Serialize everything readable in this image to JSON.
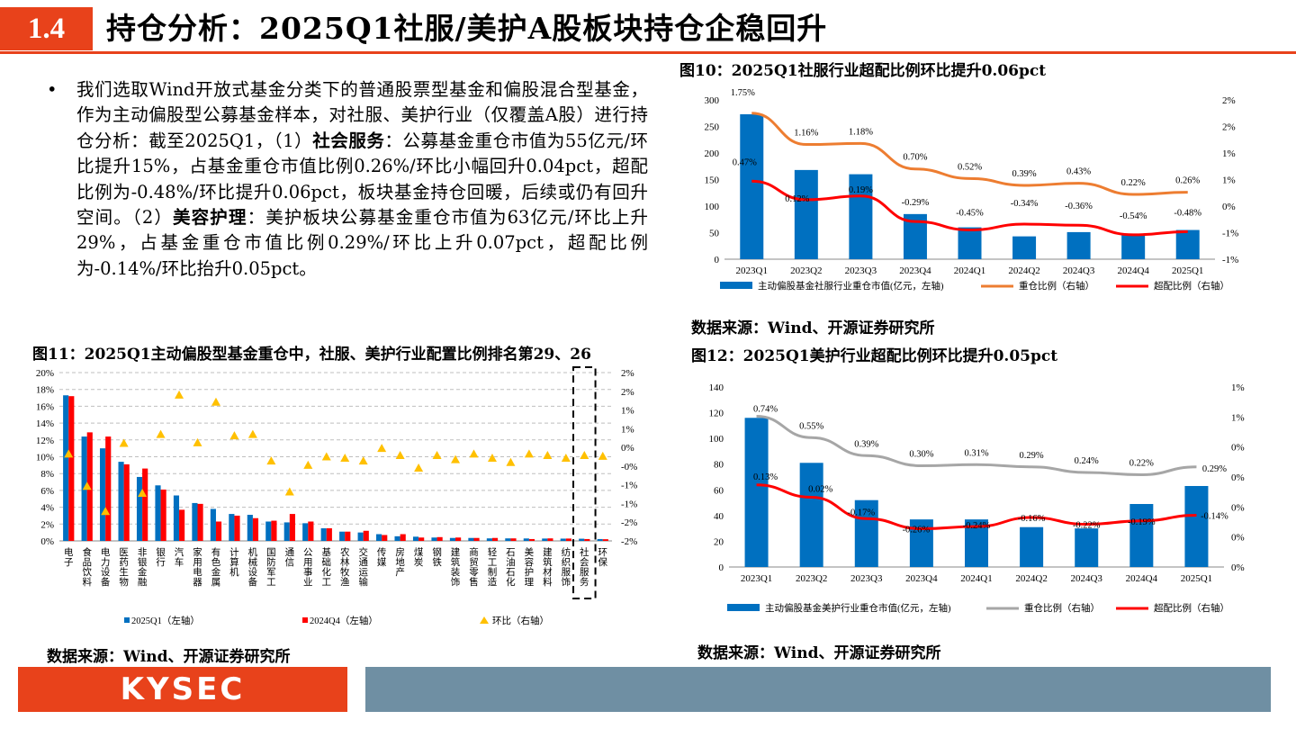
{
  "header": {
    "section_number": "1.4",
    "title": "持仓分析：2025Q1社服/美护A股板块持仓企稳回升"
  },
  "bullet": {
    "dot": "•",
    "p1": "我们选取Wind开放式基金分类下的普通股票型基金和偏股混合型基金，作为主动偏股型公募基金样本，对社服、美护行业（仅覆盖A股）进行持仓分析：截至2025Q1，（1）",
    "b1": "社会服务",
    "p2": "：公募基金重仓市值为55亿元/环比提升15%，占基金重仓市值比例0.26%/环比小幅回升0.04pct，超配比例为-0.48%/环比提升0.06pct，板块基金持仓回暖，后续或仍有回升空间。（2）",
    "b2": "美容护理",
    "p3": "：美护板块公募基金重仓市值为63亿元/环比上升29%，占基金重仓市值比例0.29%/环比上升0.07pct，超配比例为-0.14%/环比抬升0.05pct。"
  },
  "fig10": {
    "caption": "图10：2025Q1社服行业超配比例环比提升0.06pct",
    "source": "数据来源：Wind、开源证券研究所"
  },
  "fig11": {
    "caption": "图11：2025Q1主动偏股型基金重仓中，社服、美护行业配置比例排名第29、26",
    "source": "数据来源：Wind、开源证券研究所"
  },
  "fig12": {
    "caption": "图12：2025Q1美护行业超配比例环比提升0.05pct",
    "source": "数据来源：Wind、开源证券研究所"
  },
  "footer": {
    "logo": "KYSEC"
  },
  "colors": {
    "accent": "#e8421b",
    "bar_blue": "#0070c0",
    "line_orange": "#ed7d31",
    "line_red": "#ff0000",
    "line_gray": "#a6a6a6",
    "triangle_yellow": "#ffc000",
    "footer_gray": "#6f8fa3"
  },
  "chart_data": [
    {
      "id": "fig10",
      "type": "bar",
      "categories": [
        "2023Q1",
        "2023Q2",
        "2023Q3",
        "2023Q4",
        "2024Q1",
        "2024Q2",
        "2024Q3",
        "2024Q4",
        "2025Q1"
      ],
      "series": [
        {
          "name": "主动偏股基金社服行业重仓市值(亿元，左轴)",
          "type": "bar",
          "axis": "left",
          "values": [
            273,
            168,
            160,
            85,
            60,
            43,
            51,
            48,
            55
          ]
        },
        {
          "name": "重仓比例（右轴）",
          "type": "line",
          "axis": "right",
          "values": [
            1.75,
            1.16,
            1.18,
            0.7,
            0.52,
            0.39,
            0.43,
            0.22,
            0.26
          ],
          "labels": [
            "1.75%",
            "1.16%",
            "1.18%",
            "0.70%",
            "0.52%",
            "0.39%",
            "0.43%",
            "0.22%",
            "0.26%"
          ]
        },
        {
          "name": "超配比例（右轴）",
          "type": "line",
          "axis": "right",
          "values": [
            0.47,
            0.12,
            0.19,
            -0.29,
            -0.45,
            -0.34,
            -0.36,
            -0.54,
            -0.48
          ],
          "labels": [
            "0.47%",
            "0.12%",
            "0.19%",
            "-0.29%",
            "-0.45%",
            "-0.34%",
            "-0.36%",
            "-0.54%",
            "-0.48%"
          ]
        }
      ],
      "y_left": {
        "min": 0,
        "max": 300,
        "ticks": [
          "0",
          "50",
          "100",
          "150",
          "200",
          "250",
          "300"
        ]
      },
      "y_right": {
        "min": -1,
        "max": 2,
        "ticks": [
          "-1%",
          "-1%",
          "0%",
          "1%",
          "1%",
          "2%",
          "2%"
        ]
      }
    },
    {
      "id": "fig11",
      "type": "bar",
      "categories": [
        "电子",
        "食品饮料",
        "电力设备",
        "医药生物",
        "非银金融",
        "银行",
        "汽车",
        "家用电器",
        "有色金属",
        "计算机",
        "机械设备",
        "国防军工",
        "通信",
        "公用事业",
        "基础化工",
        "农林牧渔",
        "交通运输",
        "传媒",
        "房地产",
        "煤炭",
        "钢铁",
        "建筑装饰",
        "商贸零售",
        "轻工制造",
        "石油石化",
        "美容护理",
        "建筑材料",
        "纺织服饰",
        "社会服务",
        "环保"
      ],
      "series": [
        {
          "name": "2025Q1（左轴）",
          "type": "bar",
          "axis": "left",
          "values": [
            17.3,
            12.4,
            11.0,
            9.4,
            7.6,
            6.6,
            5.4,
            4.5,
            3.8,
            3.2,
            3.1,
            2.3,
            2.2,
            2.1,
            1.5,
            1.1,
            1.0,
            0.8,
            0.55,
            0.5,
            0.4,
            0.35,
            0.35,
            0.3,
            0.3,
            0.29,
            0.28,
            0.27,
            0.26,
            0.22
          ]
        },
        {
          "name": "2024Q4（左轴）",
          "type": "bar",
          "axis": "left",
          "values": [
            17.2,
            12.9,
            12.4,
            9.1,
            8.6,
            6.1,
            3.7,
            4.4,
            2.3,
            3.0,
            2.7,
            2.4,
            3.2,
            2.3,
            1.5,
            1.1,
            1.2,
            0.7,
            0.8,
            0.4,
            0.45,
            0.4,
            0.35,
            0.35,
            0.3,
            0.22,
            0.3,
            0.28,
            0.22,
            0.2
          ]
        },
        {
          "name": "环比（右轴）",
          "type": "scatter",
          "axis": "right",
          "values": [
            0.1,
            -1.05,
            -1.95,
            0.48,
            -1.3,
            0.8,
            2.2,
            0.5,
            1.95,
            0.75,
            0.8,
            -0.15,
            -1.25,
            -0.3,
            0.0,
            -0.05,
            -0.15,
            0.3,
            0.05,
            -0.4,
            0.05,
            -0.1,
            0.1,
            -0.05,
            -0.2,
            0.1,
            0.05,
            -0.05,
            0.05,
            0.02
          ]
        }
      ],
      "y_left": {
        "min": 0,
        "max": 20,
        "ticks": [
          "0%",
          "2%",
          "4%",
          "6%",
          "8%",
          "10%",
          "12%",
          "14%",
          "16%",
          "18%",
          "20%"
        ]
      },
      "y_right": {
        "min": -3,
        "max": 3,
        "ticks": [
          "-2%",
          "-2%",
          "-1%",
          "-1%",
          "-0%",
          "0%",
          "1%",
          "1%",
          "2%",
          "2%"
        ]
      },
      "highlight": [
        "社会服务",
        "环保"
      ]
    },
    {
      "id": "fig12",
      "type": "bar",
      "categories": [
        "2023Q1",
        "2023Q2",
        "2023Q3",
        "2023Q4",
        "2024Q1",
        "2024Q2",
        "2024Q3",
        "2024Q4",
        "2025Q1"
      ],
      "series": [
        {
          "name": "主动偏股基金美护行业重仓市值(亿元，左轴)",
          "type": "bar",
          "axis": "left",
          "values": [
            116,
            81,
            52,
            37,
            37,
            31,
            30,
            49,
            63
          ]
        },
        {
          "name": "重仓比例（右轴）",
          "type": "line",
          "axis": "right",
          "values": [
            0.74,
            0.55,
            0.39,
            0.3,
            0.31,
            0.29,
            0.24,
            0.22,
            0.29
          ],
          "labels": [
            "0.74%",
            "0.55%",
            "0.39%",
            "0.30%",
            "0.31%",
            "0.29%",
            "0.24%",
            "0.22%",
            "0.29%"
          ]
        },
        {
          "name": "超配比例（右轴）",
          "type": "line",
          "axis": "right",
          "values": [
            0.13,
            0.02,
            -0.17,
            -0.26,
            -0.24,
            -0.16,
            -0.22,
            -0.19,
            -0.14
          ],
          "labels": [
            "0.13%",
            "0.02%",
            "-0.17%",
            "-0.26%",
            "-0.24%",
            "-0.16%",
            "-0.22%",
            "-0.19%",
            "-0.14%"
          ]
        }
      ],
      "y_left": {
        "min": 0,
        "max": 140,
        "ticks": [
          "0",
          "20",
          "40",
          "60",
          "80",
          "100",
          "120",
          "140"
        ]
      },
      "y_right": {
        "min": -0.6,
        "max": 1.0,
        "ticks": [
          "0%",
          "0%",
          "0%",
          "0%",
          "0%",
          "1%",
          "1%"
        ]
      }
    }
  ]
}
